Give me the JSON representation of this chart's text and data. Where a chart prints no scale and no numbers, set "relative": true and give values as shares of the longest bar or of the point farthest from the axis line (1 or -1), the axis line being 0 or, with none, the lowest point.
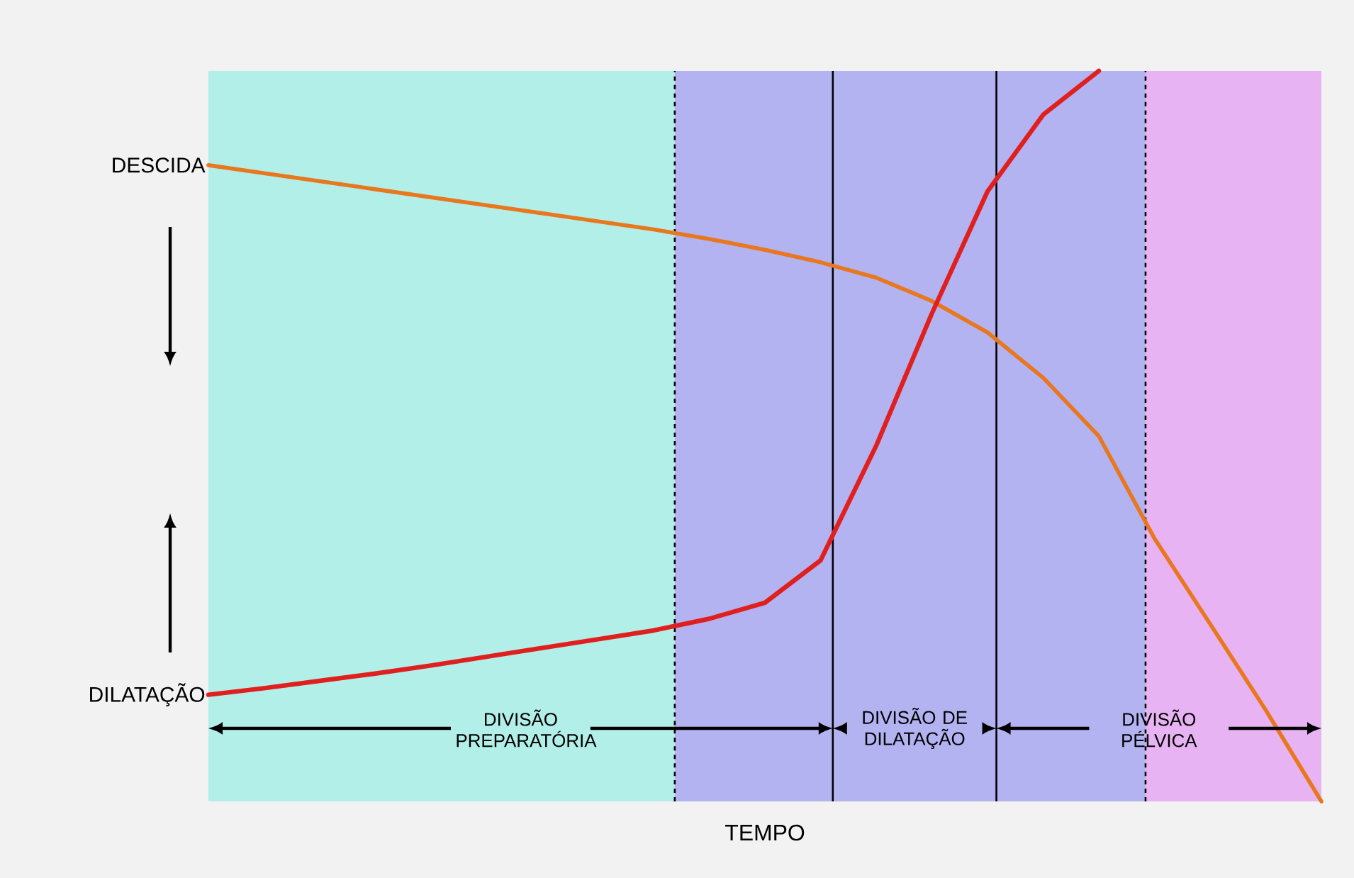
{
  "chart_data": {
    "type": "line",
    "relative": true,
    "xlabel": "TEMPO",
    "categories": [
      null,
      null,
      null,
      null,
      null,
      null,
      null,
      null,
      null,
      null,
      null,
      null,
      null,
      null,
      null,
      null,
      null,
      null,
      null,
      null,
      null
    ],
    "series": [
      {
        "name": "DESCIDA",
        "color": "#e8771e",
        "values": [
          0.871,
          0.86,
          0.849,
          0.838,
          0.827,
          0.816,
          0.805,
          0.794,
          0.783,
          0.77,
          0.755,
          0.738,
          0.717,
          0.685,
          0.642,
          0.58,
          0.5,
          0.36,
          0.243,
          0.125,
          0
        ]
      },
      {
        "name": "DILATAÇÃO",
        "color": "#e0201e",
        "values": [
          0.146,
          0.155,
          0.165,
          0.175,
          0.186,
          0.198,
          0.21,
          0.222,
          0.234,
          0.25,
          0.272,
          0.33,
          0.487,
          0.668,
          0.835,
          0.94,
          1,
          null,
          null,
          null,
          null
        ]
      }
    ],
    "annotations": [
      "DIVISÃO PREPARATÓRIA",
      "DIVISÃO DE DILATAÇÃO",
      "DIVISÃO PÉLVICA"
    ]
  }
}
